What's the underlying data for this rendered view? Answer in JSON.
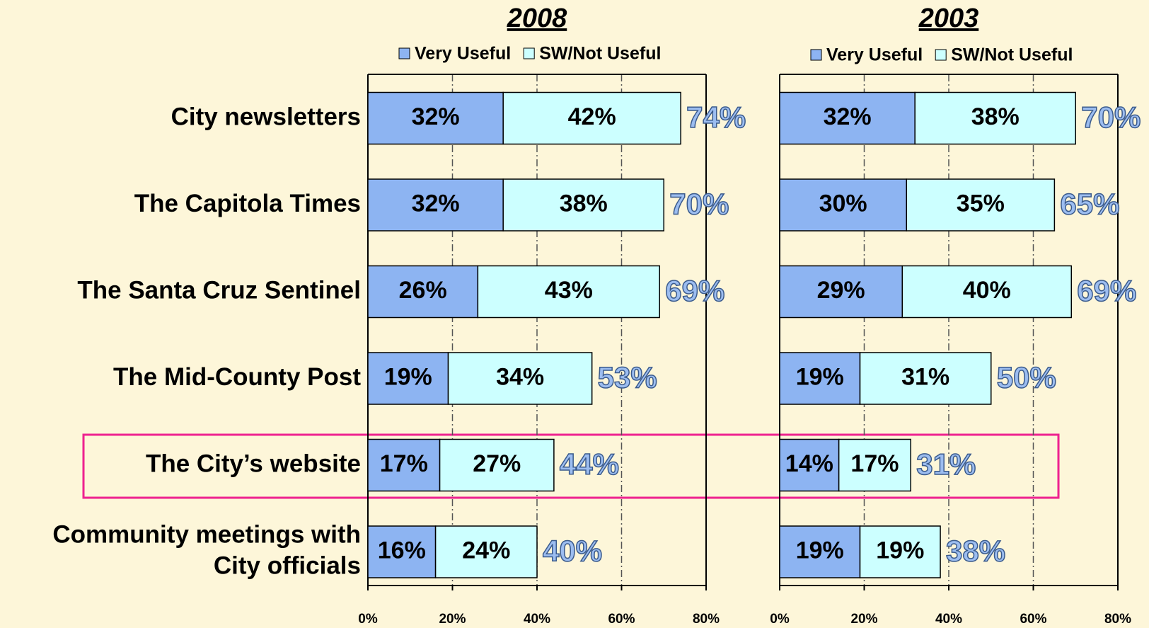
{
  "chart_data": [
    {
      "type": "stacked-barh",
      "title": "2008",
      "categories": [
        "City newsletters",
        "The Capitola Times",
        "The Santa Cruz Sentinel",
        "The Mid-County Post",
        "The City’s website",
        "Community meetings with\nCity officials"
      ],
      "series": [
        {
          "name": "Very Useful",
          "color": "#8db4f2",
          "values": [
            32,
            32,
            26,
            19,
            17,
            16
          ],
          "value_labels": [
            "32%",
            "32%",
            "26%",
            "19%",
            "17%",
            "16%"
          ]
        },
        {
          "name": "SW/Not Useful",
          "color": "#ccffff",
          "values": [
            42,
            38,
            43,
            34,
            27,
            24
          ],
          "value_labels": [
            "42%",
            "38%",
            "43%",
            "34%",
            "27%",
            "24%"
          ]
        }
      ],
      "totals": [
        74,
        70,
        69,
        53,
        44,
        40
      ],
      "total_labels": [
        "74%",
        "70%",
        "69%",
        "53%",
        "44%",
        "40%"
      ],
      "xlim": [
        0,
        80
      ],
      "xticks": [
        {
          "value": 0,
          "label": "0%"
        },
        {
          "value": 20,
          "label": "20%"
        },
        {
          "value": 40,
          "label": "40%"
        },
        {
          "value": 60,
          "label": "60%"
        },
        {
          "value": 80,
          "label": "80%"
        }
      ],
      "grid": true
    },
    {
      "type": "stacked-barh",
      "title": "2003",
      "series": [
        {
          "name": "Very Useful",
          "color": "#8db4f2",
          "values": [
            32,
            30,
            29,
            19,
            14,
            19
          ],
          "value_labels": [
            "32%",
            "30%",
            "29%",
            "19%",
            "14%",
            "19%"
          ]
        },
        {
          "name": "SW/Not Useful",
          "color": "#ccffff",
          "values": [
            38,
            35,
            40,
            31,
            17,
            19
          ],
          "value_labels": [
            "38%",
            "35%",
            "40%",
            "31%",
            "17%",
            "19%"
          ]
        }
      ],
      "totals": [
        70,
        65,
        69,
        50,
        31,
        38
      ],
      "total_labels": [
        "70%",
        "65%",
        "69%",
        "50%",
        "31%",
        "38%"
      ],
      "xlim": [
        0,
        80
      ],
      "xticks": [
        {
          "value": 0,
          "label": "0%"
        },
        {
          "value": 20,
          "label": "20%"
        },
        {
          "value": 40,
          "label": "40%"
        },
        {
          "value": 60,
          "label": "60%"
        },
        {
          "value": 80,
          "label": "80%"
        }
      ],
      "grid": true
    }
  ]
}
